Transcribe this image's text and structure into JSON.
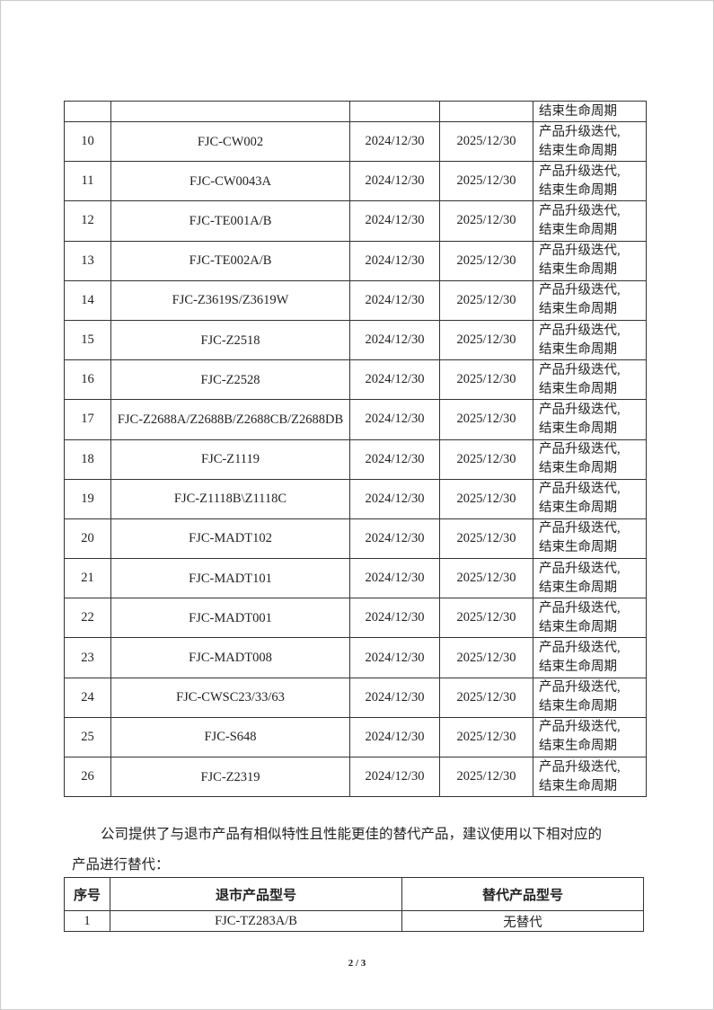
{
  "retire_table": {
    "continued_row": {
      "remark_tail": "结束生命周期"
    },
    "rows": [
      {
        "no": "10",
        "model": "FJC-CW002",
        "date1": "2024/12/30",
        "date2": "2025/12/30",
        "remark1": "产品升级迭代,",
        "remark2": "结束生命周期"
      },
      {
        "no": "11",
        "model": "FJC-CW0043A",
        "date1": "2024/12/30",
        "date2": "2025/12/30",
        "remark1": "产品升级迭代,",
        "remark2": "结束生命周期"
      },
      {
        "no": "12",
        "model": "FJC-TE001A/B",
        "date1": "2024/12/30",
        "date2": "2025/12/30",
        "remark1": "产品升级迭代,",
        "remark2": "结束生命周期"
      },
      {
        "no": "13",
        "model": "FJC-TE002A/B",
        "date1": "2024/12/30",
        "date2": "2025/12/30",
        "remark1": "产品升级迭代,",
        "remark2": "结束生命周期"
      },
      {
        "no": "14",
        "model": "FJC-Z3619S/Z3619W",
        "date1": "2024/12/30",
        "date2": "2025/12/30",
        "remark1": "产品升级迭代,",
        "remark2": "结束生命周期"
      },
      {
        "no": "15",
        "model": "FJC-Z2518",
        "date1": "2024/12/30",
        "date2": "2025/12/30",
        "remark1": "产品升级迭代,",
        "remark2": "结束生命周期"
      },
      {
        "no": "16",
        "model": "FJC-Z2528",
        "date1": "2024/12/30",
        "date2": "2025/12/30",
        "remark1": "产品升级迭代,",
        "remark2": "结束生命周期"
      },
      {
        "no": "17",
        "model": "FJC-Z2688A/Z2688B/Z2688CB/Z2688DB",
        "date1": "2024/12/30",
        "date2": "2025/12/30",
        "remark1": "产品升级迭代,",
        "remark2": "结束生命周期"
      },
      {
        "no": "18",
        "model": "FJC-Z1119",
        "date1": "2024/12/30",
        "date2": "2025/12/30",
        "remark1": "产品升级迭代,",
        "remark2": "结束生命周期"
      },
      {
        "no": "19",
        "model": "FJC-Z1118B\\Z1118C",
        "date1": "2024/12/30",
        "date2": "2025/12/30",
        "remark1": "产品升级迭代,",
        "remark2": "结束生命周期"
      },
      {
        "no": "20",
        "model": "FJC-MADT102",
        "date1": "2024/12/30",
        "date2": "2025/12/30",
        "remark1": "产品升级迭代,",
        "remark2": "结束生命周期"
      },
      {
        "no": "21",
        "model": "FJC-MADT101",
        "date1": "2024/12/30",
        "date2": "2025/12/30",
        "remark1": "产品升级迭代,",
        "remark2": "结束生命周期"
      },
      {
        "no": "22",
        "model": "FJC-MADT001",
        "date1": "2024/12/30",
        "date2": "2025/12/30",
        "remark1": "产品升级迭代,",
        "remark2": "结束生命周期"
      },
      {
        "no": "23",
        "model": "FJC-MADT008",
        "date1": "2024/12/30",
        "date2": "2025/12/30",
        "remark1": "产品升级迭代,",
        "remark2": "结束生命周期"
      },
      {
        "no": "24",
        "model": "FJC-CWSC23/33/63",
        "date1": "2024/12/30",
        "date2": "2025/12/30",
        "remark1": "产品升级迭代,",
        "remark2": "结束生命周期"
      },
      {
        "no": "25",
        "model": "FJC-S648",
        "date1": "2024/12/30",
        "date2": "2025/12/30",
        "remark1": "产品升级迭代,",
        "remark2": "结束生命周期"
      },
      {
        "no": "26",
        "model": "FJC-Z2319",
        "date1": "2024/12/30",
        "date2": "2025/12/30",
        "remark1": "产品升级迭代,",
        "remark2": "结束生命周期"
      }
    ]
  },
  "paragraph": {
    "line1": "公司提供了与退市产品有相似特性且性能更佳的替代产品，建议使用以下相对应的",
    "line2": "产品进行替代："
  },
  "replace_table": {
    "headers": [
      "序号",
      "退市产品型号",
      "替代产品型号"
    ],
    "rows": [
      {
        "no": "1",
        "model": "FJC-TZ283A/B",
        "replacement": "无替代"
      }
    ]
  },
  "page_number": "2 / 3"
}
